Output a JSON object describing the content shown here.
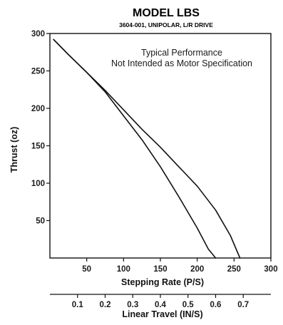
{
  "chart_data": {
    "type": "line",
    "title": "MODEL LBS",
    "subtitle": "3604-001, UNIPOLAR, L/R DRIVE",
    "xlabel": "Stepping Rate (P/S)",
    "ylabel": "Thrust (oz)",
    "xlim": [
      0,
      300
    ],
    "ylim": [
      0,
      300
    ],
    "x_ticks": [
      50,
      100,
      150,
      200,
      250,
      300
    ],
    "y_ticks": [
      50,
      100,
      150,
      200,
      250,
      300
    ],
    "secondary_x_axis": {
      "label": "Linear Travel (IN/S)",
      "ticks": [
        0.1,
        0.2,
        0.3,
        0.4,
        0.5,
        0.6,
        0.7
      ],
      "units_per_primary": 0.002667
    },
    "annotations": [
      "Typical Performance",
      "Not Intended as Motor Specification"
    ],
    "grid": false,
    "series": [
      {
        "x": [
          5,
          25,
          50,
          75,
          100,
          125,
          150,
          175,
          200,
          215,
          225
        ],
        "y": [
          292,
          272,
          248,
          222,
          190,
          158,
          122,
          82,
          40,
          12,
          0
        ]
      },
      {
        "x": [
          5,
          25,
          50,
          75,
          100,
          125,
          150,
          175,
          200,
          225,
          245,
          258
        ],
        "y": [
          292,
          272,
          248,
          224,
          198,
          172,
          148,
          122,
          96,
          64,
          30,
          0
        ]
      }
    ]
  }
}
